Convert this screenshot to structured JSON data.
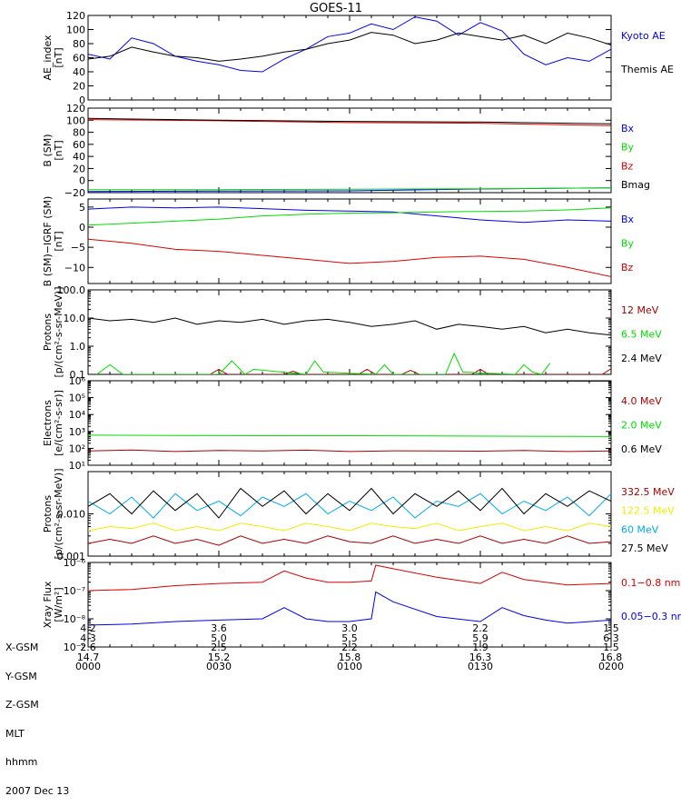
{
  "title": "GOES-11",
  "x_ticks": {
    "rows": [
      {
        "label": "X-GSM",
        "values": [
          "4.2",
          "3.6",
          "3.0",
          "2.2",
          "1.5"
        ]
      },
      {
        "label": "Y-GSM",
        "values": [
          "4.3",
          "5.0",
          "5.5",
          "5.9",
          "6.3"
        ]
      },
      {
        "label": "Z-GSM",
        "values": [
          "2.6",
          "2.5",
          "2.2",
          "1.9",
          "1.5"
        ]
      },
      {
        "label": "MLT",
        "values": [
          "14.7",
          "15.2",
          "15.8",
          "16.3",
          "16.8"
        ]
      },
      {
        "label": "hhmm",
        "values": [
          "0000",
          "0030",
          "0100",
          "0130",
          "0200"
        ]
      }
    ],
    "date": "2007 Dec 13"
  },
  "colors": {
    "black": "#000000",
    "blue": "#0000ee",
    "green": "#00dd00",
    "red": "#dd0000",
    "darkred": "#aa0000",
    "yellow": "#eeee00",
    "cyan": "#00aaee"
  },
  "chart_data": [
    {
      "type": "line",
      "ylabel": "AE_index\n[nT]",
      "yscale": "linear",
      "ylim": [
        0,
        120
      ],
      "yticks": [
        "0",
        "20",
        "40",
        "60",
        "80",
        "100",
        "120"
      ],
      "xlim": [
        0,
        120
      ],
      "series": [
        {
          "name": "Kyoto AE",
          "color": "#0000ee",
          "x": [
            0,
            5,
            10,
            15,
            20,
            25,
            30,
            35,
            40,
            45,
            50,
            55,
            60,
            65,
            70,
            75,
            80,
            85,
            90,
            95,
            100,
            105,
            110,
            115,
            120
          ],
          "y": [
            65,
            58,
            88,
            80,
            62,
            55,
            50,
            42,
            40,
            58,
            72,
            90,
            95,
            108,
            100,
            118,
            112,
            92,
            110,
            98,
            65,
            50,
            60,
            55,
            72
          ]
        },
        {
          "name": "Themis AE",
          "color": "#000000",
          "x": [
            0,
            5,
            10,
            15,
            20,
            25,
            30,
            35,
            40,
            45,
            50,
            55,
            60,
            65,
            70,
            75,
            80,
            85,
            90,
            95,
            100,
            105,
            110,
            115,
            120
          ],
          "y": [
            58,
            62,
            75,
            68,
            62,
            60,
            55,
            58,
            62,
            68,
            72,
            80,
            85,
            96,
            92,
            80,
            85,
            95,
            90,
            85,
            92,
            80,
            95,
            88,
            78
          ]
        }
      ]
    },
    {
      "type": "line",
      "ylabel": "B (SM)\n[nT]",
      "yscale": "linear",
      "ylim": [
        -20,
        120
      ],
      "yticks": [
        "−20",
        "0",
        "20",
        "40",
        "60",
        "80",
        "100",
        "120"
      ],
      "xlim": [
        0,
        120
      ],
      "series": [
        {
          "name": "Bx",
          "color": "#0000ee",
          "x": [
            0,
            30,
            60,
            90,
            120
          ],
          "y": [
            -18,
            -17.5,
            -17,
            -14,
            -12
          ]
        },
        {
          "name": "By",
          "color": "#00dd00",
          "x": [
            0,
            30,
            60,
            90,
            120
          ],
          "y": [
            -15,
            -15,
            -14.5,
            -13.5,
            -12
          ]
        },
        {
          "name": "Bz",
          "color": "#dd0000",
          "x": [
            0,
            30,
            60,
            90,
            120
          ],
          "y": [
            101,
            99,
            96,
            95,
            91
          ]
        },
        {
          "name": "Bmag",
          "color": "#000000",
          "x": [
            0,
            30,
            60,
            90,
            120
          ],
          "y": [
            103,
            100,
            98,
            97,
            94
          ]
        }
      ]
    },
    {
      "type": "line",
      "ylabel": "B (SM)−IGRF (SM)\n[nT]",
      "yscale": "linear",
      "ylim": [
        -14,
        7
      ],
      "yticks": [
        "−10",
        "−5",
        "0",
        "5"
      ],
      "xlim": [
        0,
        120
      ],
      "series": [
        {
          "name": "Bx",
          "color": "#0000ee",
          "x": [
            0,
            10,
            20,
            30,
            40,
            50,
            60,
            70,
            80,
            90,
            100,
            110,
            120
          ],
          "y": [
            4.5,
            5.0,
            4.8,
            5.0,
            4.6,
            4.2,
            4.0,
            3.8,
            2.8,
            1.8,
            1.2,
            1.8,
            1.5
          ]
        },
        {
          "name": "By",
          "color": "#00dd00",
          "x": [
            0,
            10,
            20,
            30,
            40,
            50,
            60,
            70,
            80,
            90,
            100,
            110,
            120
          ],
          "y": [
            0.5,
            1.0,
            1.5,
            2.0,
            2.8,
            3.2,
            3.5,
            3.6,
            3.8,
            3.9,
            4.0,
            4.3,
            4.8
          ]
        },
        {
          "name": "Bz",
          "color": "#dd0000",
          "x": [
            0,
            10,
            20,
            30,
            40,
            50,
            60,
            70,
            80,
            90,
            100,
            110,
            120
          ],
          "y": [
            -3,
            -4,
            -5.5,
            -6,
            -7,
            -8,
            -9,
            -8.5,
            -7.5,
            -7.2,
            -8,
            -10,
            -12.3
          ]
        }
      ]
    },
    {
      "type": "line",
      "ylabel": "Protons\n[p/(cm²-s-sr-MeV)]",
      "yscale": "log",
      "ylim": [
        0.1,
        100
      ],
      "yticks": [
        "0.1",
        "1.0",
        "10.0",
        "100.0"
      ],
      "xlim": [
        0,
        120
      ],
      "series": [
        {
          "name": "12 MeV",
          "color": "#aa0000",
          "x": [
            28,
            30,
            32,
            45,
            47,
            49,
            62,
            64,
            66,
            72,
            74,
            76,
            88,
            90,
            92,
            118,
            120
          ],
          "y": [
            0.1,
            0.15,
            0.1,
            0.1,
            0.13,
            0.1,
            0.1,
            0.15,
            0.1,
            0.1,
            0.14,
            0.1,
            0.1,
            0.15,
            0.1,
            0.1,
            0.16
          ]
        },
        {
          "name": "6.5 MeV",
          "color": "#00dd00",
          "x": [
            2,
            5,
            8,
            30,
            33,
            36,
            38,
            50,
            52,
            54,
            66,
            68,
            70,
            82,
            84,
            86,
            98,
            100,
            102,
            104,
            106
          ],
          "y": [
            0.1,
            0.22,
            0.1,
            0.1,
            0.3,
            0.1,
            0.15,
            0.1,
            0.3,
            0.12,
            0.1,
            0.22,
            0.1,
            0.1,
            0.55,
            0.12,
            0.1,
            0.22,
            0.12,
            0.1,
            0.25
          ]
        },
        {
          "name": "2.4 MeV",
          "color": "#000000",
          "x": [
            0,
            5,
            10,
            15,
            20,
            25,
            30,
            35,
            40,
            45,
            50,
            55,
            60,
            65,
            70,
            75,
            80,
            85,
            90,
            95,
            100,
            105,
            110,
            115,
            120
          ],
          "y": [
            10,
            8,
            9,
            7,
            10,
            6,
            8,
            7,
            9,
            6,
            8,
            9,
            7,
            5,
            6,
            8,
            4,
            6,
            5,
            4,
            5,
            3,
            4,
            3,
            2.5
          ]
        }
      ]
    },
    {
      "type": "line",
      "ylabel": "Electrons\n[e/(cm²-s-sr)]",
      "yscale": "log",
      "ylim": [
        10,
        1000000
      ],
      "yticks": [
        "10¹",
        "10²",
        "10³",
        "10⁴",
        "10⁵",
        "10⁶"
      ],
      "xlim": [
        0,
        120
      ],
      "series": [
        {
          "name": "4.0 MeV",
          "color": "#aa0000",
          "x": [
            0,
            10,
            20,
            30,
            40,
            50,
            60,
            70,
            80,
            90,
            100,
            110,
            120
          ],
          "y": [
            70,
            80,
            65,
            75,
            70,
            78,
            65,
            72,
            70,
            68,
            75,
            65,
            70
          ]
        },
        {
          "name": "2.0 MeV",
          "color": "#00dd00",
          "x": [
            0,
            20,
            40,
            60,
            80,
            100,
            120
          ],
          "y": [
            600,
            580,
            560,
            560,
            540,
            520,
            500
          ]
        },
        {
          "name": "0.6 MeV",
          "color": "#000000",
          "x": [
            0,
            20,
            40,
            60,
            80,
            100,
            120
          ],
          "y": [
            1100000,
            1080000,
            1050000,
            1020000,
            1000000,
            980000,
            950000
          ]
        }
      ]
    },
    {
      "type": "line",
      "ylabel": "Protons\n[p/(cm²-s-sr-MeV)]",
      "yscale": "log",
      "ylim": [
        0.001,
        0.1
      ],
      "yticks": [
        "0.001",
        "0.010"
      ],
      "xlim": [
        0,
        120
      ],
      "series": [
        {
          "name": "332.5 MeV",
          "color": "#aa0000",
          "x": [
            0,
            5,
            10,
            15,
            20,
            25,
            30,
            35,
            40,
            45,
            50,
            55,
            60,
            65,
            70,
            75,
            80,
            85,
            90,
            95,
            100,
            105,
            110,
            115,
            120
          ],
          "y": [
            0.002,
            0.0025,
            0.002,
            0.003,
            0.002,
            0.0025,
            0.0018,
            0.003,
            0.002,
            0.0025,
            0.002,
            0.003,
            0.0022,
            0.002,
            0.003,
            0.002,
            0.0025,
            0.002,
            0.003,
            0.002,
            0.0025,
            0.002,
            0.003,
            0.002,
            0.0022
          ]
        },
        {
          "name": "122.5 MeV",
          "color": "#eeee00",
          "x": [
            0,
            5,
            10,
            15,
            20,
            25,
            30,
            35,
            40,
            45,
            50,
            55,
            60,
            65,
            70,
            75,
            80,
            85,
            90,
            95,
            100,
            105,
            110,
            115,
            120
          ],
          "y": [
            0.004,
            0.005,
            0.0045,
            0.006,
            0.004,
            0.005,
            0.004,
            0.006,
            0.005,
            0.004,
            0.006,
            0.005,
            0.004,
            0.006,
            0.005,
            0.0045,
            0.006,
            0.004,
            0.005,
            0.006,
            0.004,
            0.005,
            0.004,
            0.006,
            0.005
          ]
        },
        {
          "name": "60 MeV",
          "color": "#00aaee",
          "x": [
            0,
            5,
            10,
            15,
            20,
            25,
            30,
            35,
            40,
            45,
            50,
            55,
            60,
            65,
            70,
            75,
            80,
            85,
            90,
            95,
            100,
            105,
            110,
            115,
            120
          ],
          "y": [
            0.02,
            0.01,
            0.025,
            0.008,
            0.03,
            0.012,
            0.02,
            0.009,
            0.025,
            0.015,
            0.03,
            0.01,
            0.02,
            0.012,
            0.025,
            0.008,
            0.02,
            0.015,
            0.03,
            0.01,
            0.02,
            0.012,
            0.025,
            0.009,
            0.03
          ]
        },
        {
          "name": "27.5 MeV",
          "color": "#000000",
          "x": [
            0,
            5,
            10,
            15,
            20,
            25,
            30,
            35,
            40,
            45,
            50,
            55,
            60,
            65,
            70,
            75,
            80,
            85,
            90,
            95,
            100,
            105,
            110,
            115,
            120
          ],
          "y": [
            0.015,
            0.03,
            0.01,
            0.035,
            0.012,
            0.03,
            0.008,
            0.04,
            0.015,
            0.035,
            0.01,
            0.03,
            0.012,
            0.04,
            0.01,
            0.03,
            0.015,
            0.035,
            0.012,
            0.04,
            0.01,
            0.03,
            0.015,
            0.035,
            0.02
          ]
        }
      ]
    },
    {
      "type": "line",
      "ylabel": "Xray Flux\n[W/m²]",
      "yscale": "log",
      "ylim": [
        1e-09,
        1e-06
      ],
      "yticks": [
        "10⁻⁹",
        "10⁻⁸",
        "10⁻⁷",
        "10⁻⁶"
      ],
      "xlim": [
        0,
        120
      ],
      "series": [
        {
          "name": "0.1−0.8 nm",
          "color": "#dd0000",
          "x": [
            0,
            10,
            20,
            30,
            40,
            45,
            50,
            55,
            60,
            65,
            66,
            70,
            80,
            90,
            95,
            100,
            105,
            110,
            120
          ],
          "y": [
            1e-07,
            1.1e-07,
            1.5e-07,
            1.8e-07,
            2e-07,
            5e-07,
            2.8e-07,
            2e-07,
            2e-07,
            2.2e-07,
            8e-07,
            6e-07,
            3e-07,
            1.8e-07,
            4.5e-07,
            2.5e-07,
            2e-07,
            1.6e-07,
            1.8e-07
          ]
        },
        {
          "name": "0.05−0.3 nm",
          "color": "#0000ee",
          "x": [
            0,
            10,
            20,
            30,
            40,
            45,
            50,
            55,
            60,
            65,
            66,
            70,
            80,
            90,
            95,
            100,
            105,
            110,
            120
          ],
          "y": [
            6e-09,
            6.5e-09,
            8e-09,
            9e-09,
            1e-08,
            2.5e-08,
            1e-08,
            8e-09,
            8e-09,
            1e-08,
            9e-08,
            4e-08,
            1.2e-08,
            8e-09,
            2.5e-08,
            1.3e-08,
            9e-09,
            7e-09,
            9e-09
          ]
        }
      ]
    }
  ]
}
